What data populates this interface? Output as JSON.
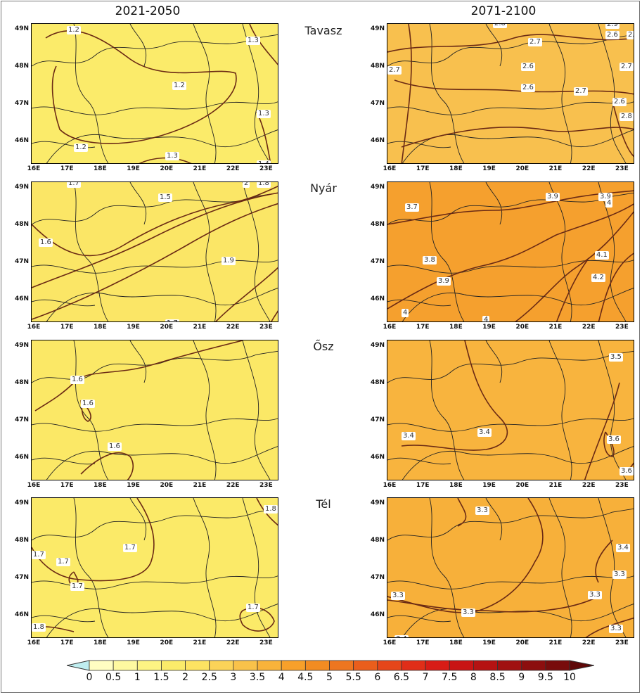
{
  "columns": [
    "2021-2050",
    "2071-2100"
  ],
  "seasons": [
    "Tavasz",
    "Nyár",
    "Ősz",
    "Tél"
  ],
  "lat_labels": [
    "49N",
    "48N",
    "47N",
    "46N"
  ],
  "lon_labels": [
    "16E",
    "17E",
    "18E",
    "19E",
    "20E",
    "21E",
    "22E",
    "23E"
  ],
  "colors": {
    "c1_5": "#fbeb6a",
    "c2": "#fde362",
    "c3": "#f9c24a",
    "c3_5": "#f9b33a",
    "c4": "#f7a02a",
    "c4_5": "#f28c22",
    "contour": "#6b2a14",
    "border": "#222222"
  },
  "panels": [
    {
      "season": "Tavasz",
      "period": "2021-2050",
      "fill": "#fbeb6a",
      "labels": [
        "1.2",
        "1.3",
        "1.2",
        "1.3",
        "1.2",
        "1.3",
        "1.4"
      ]
    },
    {
      "season": "Tavasz",
      "period": "2071-2100",
      "fill": "#f8c04e",
      "labels": [
        "2.8",
        "2.9",
        "2.7",
        "2.7",
        "2.6",
        "2.7",
        "2.6",
        "2.7",
        "2.6",
        "2.8",
        "2.6",
        "2.7",
        "2.9",
        "2.7",
        "2.8"
      ]
    },
    {
      "season": "Nyár",
      "period": "2021-2050",
      "fill": "#fbe666",
      "labels": [
        "1.7",
        "1.8",
        "1.5",
        "1.6",
        "1.9",
        "1.7",
        "2"
      ]
    },
    {
      "season": "Nyár",
      "period": "2071-2100",
      "fill": "#f5a02e",
      "labels": [
        "3.9",
        "3.9",
        "3.7",
        "4",
        "3.8",
        "3.9",
        "4.1",
        "4.2",
        "4",
        "4"
      ]
    },
    {
      "season": "Ősz",
      "period": "2021-2050",
      "fill": "#fbe866",
      "labels": [
        "1.6",
        "1.6",
        "1.6"
      ]
    },
    {
      "season": "Ősz",
      "period": "2071-2100",
      "fill": "#f8b43e",
      "labels": [
        "3.5",
        "3.4",
        "3.4",
        "3.6",
        "3.6"
      ]
    },
    {
      "season": "Tél",
      "period": "2021-2050",
      "fill": "#fbea68",
      "labels": [
        "1.8",
        "1.7",
        "1.7",
        "1.7",
        "1.7",
        "1.7",
        "1.8"
      ]
    },
    {
      "season": "Tél",
      "period": "2071-2100",
      "fill": "#f7b03a",
      "labels": [
        "3.3",
        "3.4",
        "3.3",
        "3.3",
        "3.3",
        "3.3",
        "3.3",
        "3.4"
      ]
    }
  ],
  "colorbar": {
    "ticks": [
      "0",
      "0.5",
      "1",
      "1.5",
      "2",
      "2.5",
      "3",
      "3.5",
      "4",
      "4.5",
      "5",
      "5.5",
      "6",
      "6.5",
      "7",
      "7.5",
      "8",
      "8.5",
      "9",
      "9.5",
      "10"
    ],
    "colors": [
      "#fffec2",
      "#fef9a0",
      "#fdf383",
      "#fbeb6a",
      "#fde362",
      "#fbd358",
      "#f9c24a",
      "#f9b33a",
      "#f7a02a",
      "#f28c22",
      "#ee7620",
      "#ea5e1c",
      "#e5461a",
      "#e02e18",
      "#d81c16",
      "#c81414",
      "#b51212",
      "#a01010",
      "#8c0e0e",
      "#780c0c"
    ],
    "under_color": "#bfeef0",
    "over_color": "#5e0808"
  }
}
